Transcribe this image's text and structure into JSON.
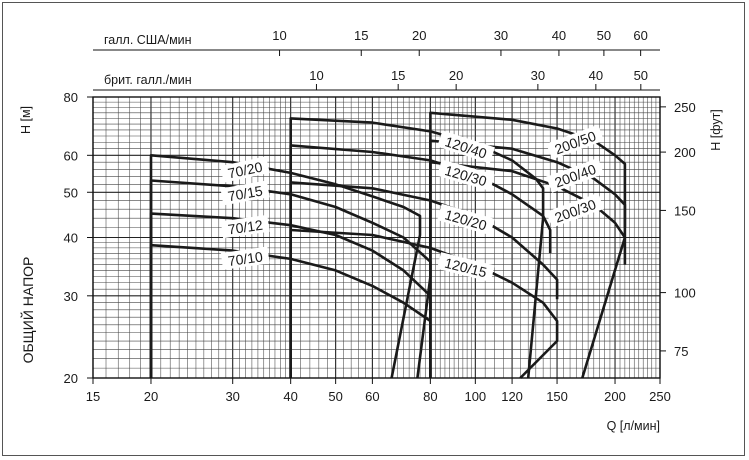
{
  "chart_data": {
    "type": "line",
    "title": "",
    "xlabel": "Q [л/мин]",
    "ylabel": "H [м]",
    "ylabel_right": "H [фут]",
    "side_label": "ОБЩИЙ НАПОР",
    "xscale": "log",
    "yscale": "log",
    "xlim": [
      15,
      250
    ],
    "ylim": [
      20,
      80
    ],
    "grid": true,
    "x_ticks": [
      15,
      20,
      30,
      40,
      50,
      60,
      80,
      100,
      120,
      150,
      200,
      250
    ],
    "y_ticks": [
      20,
      30,
      40,
      50,
      60,
      80
    ],
    "y_ticks_right": [
      75,
      100,
      150,
      200,
      250
    ],
    "top_axis_us": {
      "label": "галл. США/мин",
      "ticks": [
        10,
        15,
        20,
        30,
        40,
        50,
        60
      ]
    },
    "top_axis_uk": {
      "label": "брит. галл./мин",
      "ticks": [
        10,
        15,
        20,
        30,
        40,
        50
      ]
    },
    "series": [
      {
        "name": "70/20",
        "x": [
          20,
          20,
          30,
          40,
          50,
          60,
          70,
          76,
          76,
          66
        ],
        "y": [
          20,
          60,
          58,
          55,
          52,
          49,
          46.5,
          44.5,
          40.5,
          20
        ]
      },
      {
        "name": "70/15",
        "x": [
          20,
          20,
          30,
          40,
          50,
          60,
          70,
          80,
          80,
          75
        ],
        "y": [
          20,
          53,
          51.5,
          49.5,
          46.5,
          43,
          40,
          35.5,
          33,
          20
        ]
      },
      {
        "name": "70/12",
        "x": [
          20,
          20,
          30,
          40,
          50,
          60,
          70,
          80,
          80
        ],
        "y": [
          20,
          45,
          44,
          42.5,
          40.5,
          37.5,
          34,
          30,
          28
        ]
      },
      {
        "name": "70/10",
        "x": [
          20,
          20,
          30,
          40,
          50,
          60,
          70,
          80
        ],
        "y": [
          20,
          38.5,
          37.5,
          36,
          34,
          31.5,
          29,
          26.5
        ]
      },
      {
        "name": "120/40",
        "x": [
          40,
          40,
          60,
          80,
          100,
          120,
          135,
          140,
          140,
          130
        ],
        "y": [
          20,
          72,
          70.5,
          67.5,
          63.5,
          58.5,
          53.5,
          51,
          44,
          20
        ]
      },
      {
        "name": "120/30",
        "x": [
          40,
          40,
          60,
          80,
          100,
          120,
          140,
          145,
          145
        ],
        "y": [
          20,
          63,
          61,
          58.5,
          54.5,
          49.5,
          44.5,
          41.5,
          37
        ]
      },
      {
        "name": "120/20",
        "x": [
          40,
          40,
          60,
          80,
          100,
          120,
          140,
          150,
          150
        ],
        "y": [
          20,
          52.5,
          51,
          48,
          44.5,
          40,
          35,
          32.5,
          29.5
        ]
      },
      {
        "name": "120/15",
        "x": [
          40,
          40,
          60,
          80,
          100,
          120,
          140,
          150,
          150,
          125
        ],
        "y": [
          20,
          41.5,
          40.5,
          38,
          35,
          32,
          29,
          26.5,
          24,
          20
        ]
      },
      {
        "name": "200/50",
        "x": [
          80,
          80,
          120,
          150,
          180,
          200,
          210,
          210
        ],
        "y": [
          20,
          74,
          71.5,
          68.5,
          64.5,
          60,
          57.5,
          42
        ]
      },
      {
        "name": "200/40",
        "x": [
          80,
          80,
          120,
          150,
          180,
          200,
          210,
          210
        ],
        "y": [
          20,
          64.5,
          62,
          58,
          53.5,
          49.5,
          47,
          35
        ]
      },
      {
        "name": "200/30",
        "x": [
          80,
          80,
          120,
          150,
          180,
          200,
          210,
          170
        ],
        "y": [
          20,
          58,
          55.5,
          51.5,
          47,
          43,
          40,
          20
        ]
      }
    ],
    "curve_labels": [
      "70/20",
      "70/15",
      "70/12",
      "70/10",
      "120/40",
      "120/30",
      "120/20",
      "120/15",
      "200/50",
      "200/40",
      "200/30"
    ]
  }
}
